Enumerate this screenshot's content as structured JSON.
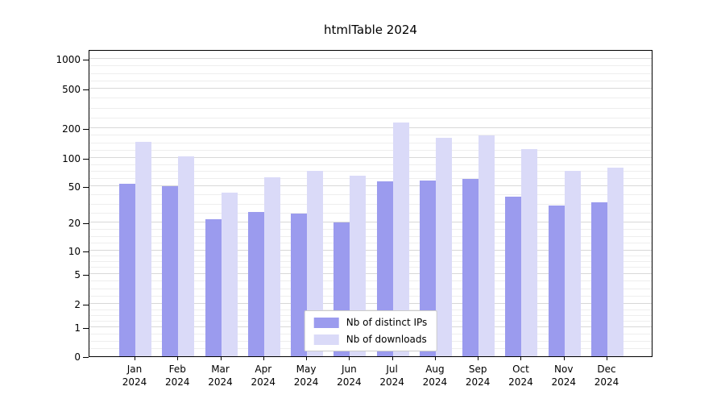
{
  "chart_data": {
    "type": "bar",
    "title": "htmlTable 2024",
    "xlabel": "",
    "ylabel": "",
    "yscale": "symlog",
    "grid": true,
    "legend_position": "lower center",
    "y_ticks": [
      0,
      1,
      2,
      5,
      10,
      20,
      50,
      100,
      200,
      500,
      1000
    ],
    "ylim": [
      0,
      1200
    ],
    "categories": [
      "Jan 2024",
      "Feb 2024",
      "Mar 2024",
      "Apr 2024",
      "May 2024",
      "Jun 2024",
      "Jul 2024",
      "Aug 2024",
      "Sep 2024",
      "Oct 2024",
      "Nov 2024",
      "Dec 2024"
    ],
    "series": [
      {
        "name": "Nb of distinct IPs",
        "color": "#9b9bee",
        "values": [
          53,
          50,
          22,
          26,
          25,
          20,
          56,
          57,
          60,
          38,
          31,
          33
        ]
      },
      {
        "name": "Nb of downloads",
        "color": "#dadaf8",
        "values": [
          145,
          103,
          42,
          62,
          73,
          65,
          230,
          160,
          168,
          122,
          72,
          78
        ]
      }
    ]
  },
  "colors": {
    "grid_major": "#d8d8d8",
    "grid_minor": "#eeeeee",
    "axis": "#000000",
    "legend_border": "#cccccc"
  }
}
